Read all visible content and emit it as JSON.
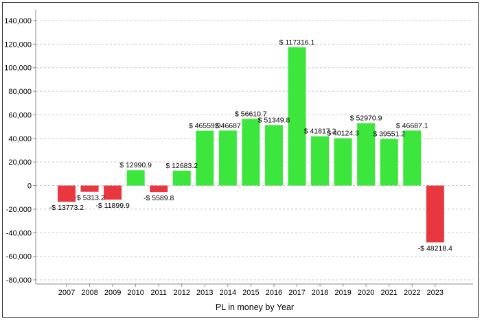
{
  "chart_data": {
    "type": "bar",
    "xlabel": "PL in money by Year",
    "ylabel": "",
    "title": "",
    "ylim": [
      -80000,
      140000
    ],
    "yticks": [
      -80000,
      -60000,
      -40000,
      -20000,
      0,
      20000,
      40000,
      60000,
      80000,
      100000,
      120000,
      140000
    ],
    "ytick_labels": [
      "-80,000",
      "-60,000",
      "-40,000",
      "-20,000",
      "0",
      "20,000",
      "40,000",
      "60,000",
      "80,000",
      "100,000",
      "120,000",
      "140,000"
    ],
    "grid": true,
    "legend": "none",
    "categories": [
      "2007",
      "2008",
      "2009",
      "2010",
      "2011",
      "2012",
      "2013",
      "2014",
      "2015",
      "2016",
      "2017",
      "2018",
      "2019",
      "2020",
      "2021",
      "2022",
      "2023"
    ],
    "values": [
      -13773.2,
      -5313.2,
      -11899.9,
      12990.9,
      -5589.8,
      12683.2,
      46559.9,
      46687,
      56610.7,
      51349.8,
      117316.1,
      41817.2,
      40124.3,
      52970.9,
      39551.2,
      46687.1,
      -48218.4
    ],
    "data_labels": [
      "-$ 13773.2",
      "-$ 5313.2",
      "-$ 11899.9",
      "$ 12990.9",
      "-$ 5589.8",
      "$ 12683.2",
      "$ 46559.9",
      "$ 46687",
      "$ 56610.7",
      "$ 51349.8",
      "$ 117316.1",
      "$ 41817.2",
      "$ 40124.3",
      "$ 52970.9",
      "$ 39551.2",
      "$ 46687.1",
      "-$ 48218.4"
    ],
    "colors": {
      "positive": "#3de63d",
      "negative": "#e8373f",
      "grid": "#c8c8c8",
      "axis": "#888888"
    }
  }
}
